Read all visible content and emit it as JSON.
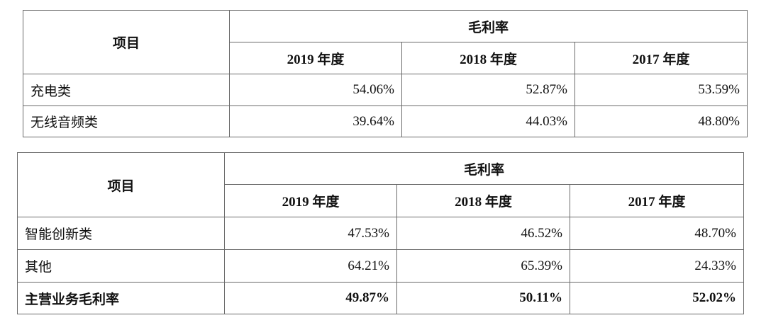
{
  "tables": [
    {
      "header": {
        "item": "项目",
        "group": "毛利率",
        "years": [
          "2019 年度",
          "2018 年度",
          "2017 年度"
        ]
      },
      "rows": [
        [
          "充电类",
          "54.06%",
          "52.87%",
          "53.59%"
        ],
        [
          "无线音频类",
          "39.64%",
          "44.03%",
          "48.80%"
        ]
      ]
    },
    {
      "header": {
        "item": "项目",
        "group": "毛利率",
        "years": [
          "2019 年度",
          "2018 年度",
          "2017 年度"
        ]
      },
      "rows": [
        [
          "智能创新类",
          "47.53%",
          "46.52%",
          "48.70%"
        ],
        [
          "其他",
          "64.21%",
          "65.39%",
          "24.33%"
        ],
        [
          "主营业务毛利率",
          "49.87%",
          "50.11%",
          "52.02%"
        ]
      ],
      "bold_last_row": true
    }
  ]
}
